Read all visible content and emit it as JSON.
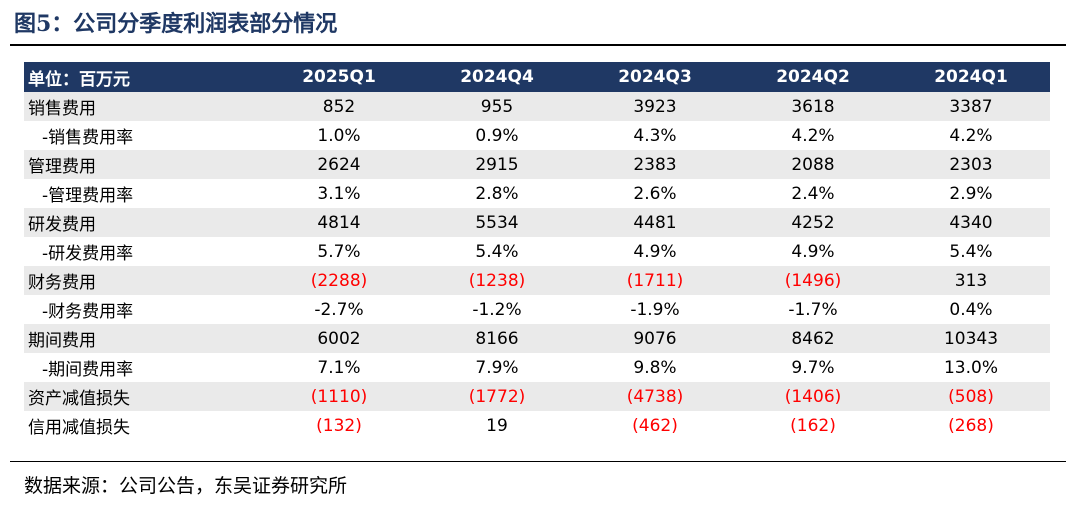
{
  "figure": {
    "title": "图5：公司分季度利润表部分情况",
    "source": "数据来源：公司公告，东吴证券研究所"
  },
  "table": {
    "header": {
      "unit_label": "单位：百万元",
      "periods": [
        "2025Q1",
        "2024Q4",
        "2024Q3",
        "2024Q2",
        "2024Q1"
      ]
    },
    "rows": [
      {
        "label": "销售费用",
        "sub": false,
        "values": [
          "852",
          "955",
          "3923",
          "3618",
          "3387"
        ],
        "negative": [
          false,
          false,
          false,
          false,
          false
        ]
      },
      {
        "label": "-销售费用率",
        "sub": true,
        "values": [
          "1.0%",
          "0.9%",
          "4.3%",
          "4.2%",
          "4.2%"
        ],
        "negative": [
          false,
          false,
          false,
          false,
          false
        ]
      },
      {
        "label": "管理费用",
        "sub": false,
        "values": [
          "2624",
          "2915",
          "2383",
          "2088",
          "2303"
        ],
        "negative": [
          false,
          false,
          false,
          false,
          false
        ]
      },
      {
        "label": "-管理费用率",
        "sub": true,
        "values": [
          "3.1%",
          "2.8%",
          "2.6%",
          "2.4%",
          "2.9%"
        ],
        "negative": [
          false,
          false,
          false,
          false,
          false
        ]
      },
      {
        "label": "研发费用",
        "sub": false,
        "values": [
          "4814",
          "5534",
          "4481",
          "4252",
          "4340"
        ],
        "negative": [
          false,
          false,
          false,
          false,
          false
        ]
      },
      {
        "label": "-研发费用率",
        "sub": true,
        "values": [
          "5.7%",
          "5.4%",
          "4.9%",
          "4.9%",
          "5.4%"
        ],
        "negative": [
          false,
          false,
          false,
          false,
          false
        ]
      },
      {
        "label": "财务费用",
        "sub": false,
        "values": [
          "(2288)",
          "(1238)",
          "(1711)",
          "(1496)",
          "313"
        ],
        "negative": [
          true,
          true,
          true,
          true,
          false
        ]
      },
      {
        "label": "-财务费用率",
        "sub": true,
        "values": [
          "-2.7%",
          "-1.2%",
          "-1.9%",
          "-1.7%",
          "0.4%"
        ],
        "negative": [
          false,
          false,
          false,
          false,
          false
        ]
      },
      {
        "label": "期间费用",
        "sub": false,
        "values": [
          "6002",
          "8166",
          "9076",
          "8462",
          "10343"
        ],
        "negative": [
          false,
          false,
          false,
          false,
          false
        ]
      },
      {
        "label": "-期间费用率",
        "sub": true,
        "values": [
          "7.1%",
          "7.9%",
          "9.8%",
          "9.7%",
          "13.0%"
        ],
        "negative": [
          false,
          false,
          false,
          false,
          false
        ]
      },
      {
        "label": "资产减值损失",
        "sub": false,
        "values": [
          "(1110)",
          "(1772)",
          "(4738)",
          "(1406)",
          "(508)"
        ],
        "negative": [
          true,
          true,
          true,
          true,
          true
        ]
      },
      {
        "label": "信用减值损失",
        "sub": false,
        "values": [
          "(132)",
          "19",
          "(462)",
          "(162)",
          "(268)"
        ],
        "negative": [
          true,
          false,
          true,
          true,
          true
        ]
      }
    ]
  },
  "colors": {
    "header_bg": "#1f3864",
    "title_text": "#1f3864",
    "negative_text": "#ff0000",
    "stripe": "#eaeaea"
  }
}
